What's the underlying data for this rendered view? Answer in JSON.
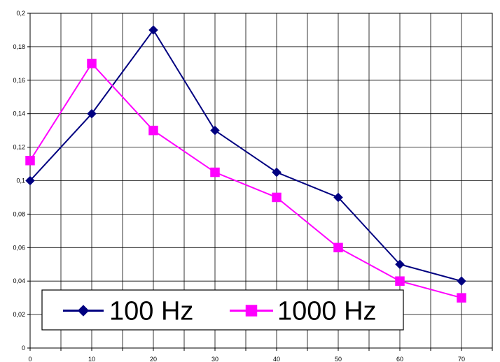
{
  "chart_data": {
    "type": "line",
    "x": [
      0,
      10,
      20,
      30,
      40,
      50,
      60,
      70
    ],
    "series": [
      {
        "name": "100 Hz",
        "color": "#000080",
        "marker": "diamond",
        "values": [
          0.1,
          0.14,
          0.19,
          0.13,
          0.105,
          0.09,
          0.05,
          0.04
        ]
      },
      {
        "name": "1000 Hz",
        "color": "#FF00FF",
        "marker": "square",
        "values": [
          0.112,
          0.17,
          0.13,
          0.105,
          0.09,
          0.06,
          0.04,
          0.03
        ]
      }
    ],
    "xticks": [
      "0",
      "10",
      "20",
      "30",
      "40",
      "50",
      "60",
      "70"
    ],
    "yticks": [
      "0",
      "0,02",
      "0,04",
      "0,06",
      "0,08",
      "0,1",
      "0,12",
      "0,14",
      "0,16",
      "0,18",
      "0,2"
    ],
    "ylim": [
      0,
      0.2
    ],
    "grid": true,
    "legend_position": "bottom-left"
  }
}
